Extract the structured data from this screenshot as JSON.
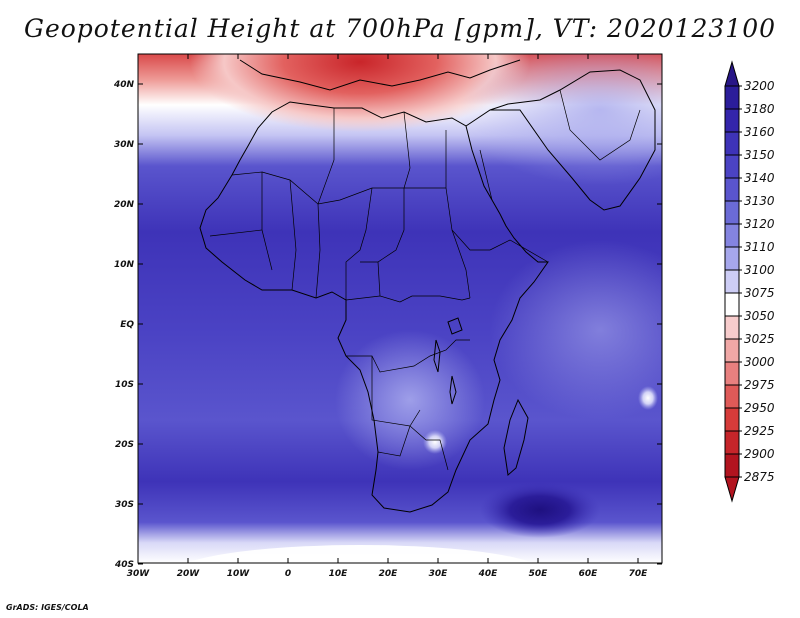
{
  "title": "Geopotential Height at 700hPa [gpm], VT: 2020123100",
  "footer": "GrADS: IGES/COLA",
  "map": {
    "lat_ticks": [
      "40N",
      "30N",
      "20N",
      "10N",
      "EQ",
      "10S",
      "20S",
      "30S",
      "40S"
    ],
    "lon_ticks": [
      "30W",
      "20W",
      "10W",
      "0",
      "10E",
      "20E",
      "30E",
      "40E",
      "50E",
      "60E",
      "70E"
    ]
  },
  "colorbar": {
    "levels": [
      "3200",
      "3180",
      "3160",
      "3150",
      "3140",
      "3130",
      "3120",
      "3110",
      "3100",
      "3075",
      "3050",
      "3025",
      "3000",
      "2975",
      "2950",
      "2925",
      "2900",
      "2875"
    ],
    "colors": [
      "#281687",
      "#2b1d9a",
      "#3425ab",
      "#3e33b8",
      "#4b43c4",
      "#5a55cd",
      "#6b6bd6",
      "#8484e0",
      "#a6a7ec",
      "#cdcdf5",
      "#ffffff",
      "#f7cccc",
      "#f0a8a6",
      "#e8807f",
      "#df5a58",
      "#d63b3a",
      "#c6252a",
      "#b2141f"
    ]
  }
}
